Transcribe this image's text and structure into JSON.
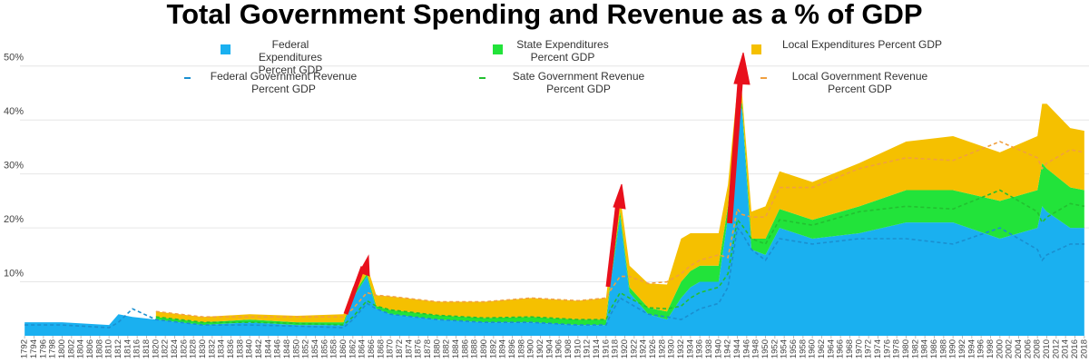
{
  "chart_data": {
    "type": "stacked_area",
    "title": "Total Government Spending and Revenue as a % of GDP",
    "x": [
      1792,
      1800,
      1810,
      1812,
      1815,
      1820,
      1830,
      1840,
      1850,
      1860,
      1862,
      1865,
      1867,
      1870,
      1880,
      1890,
      1900,
      1910,
      1916,
      1917,
      1919,
      1921,
      1925,
      1929,
      1932,
      1934,
      1936,
      1940,
      1942,
      1944,
      1945,
      1947,
      1950,
      1953,
      1960,
      1970,
      1980,
      1990,
      2000,
      2008,
      2009,
      2010,
      2015,
      2018
    ],
    "series": [
      {
        "name": "Federal Expenditures Percent GDP",
        "kind": "area",
        "color": "#1ab0f0",
        "values": [
          2.5,
          2.5,
          2,
          4,
          3.5,
          3,
          2,
          2.5,
          2,
          2,
          7,
          11,
          5,
          4,
          3,
          2.5,
          2.5,
          2,
          2,
          10,
          22,
          8,
          4,
          3,
          7,
          9,
          10,
          10,
          22,
          43,
          42,
          16,
          15,
          20,
          18,
          19,
          21,
          21,
          18,
          20,
          24,
          23,
          20,
          20
        ]
      },
      {
        "name": "State Expenditures Percent GDP",
        "kind": "area",
        "color": "#22e33a",
        "values": [
          null,
          null,
          null,
          null,
          null,
          0.5,
          0.5,
          0.5,
          0.5,
          0.5,
          0.5,
          0.5,
          0.5,
          0.8,
          0.8,
          0.8,
          1,
          1,
          1,
          1,
          1,
          1,
          1.2,
          1.5,
          3,
          3,
          3,
          3,
          2,
          1,
          1,
          2,
          3,
          3.5,
          3.5,
          5,
          6,
          6,
          7,
          7,
          8,
          8,
          7.5,
          7
        ]
      },
      {
        "name": "Local Expenditures Percent GDP",
        "kind": "area",
        "color": "#f5c000",
        "values": [
          null,
          null,
          null,
          null,
          null,
          1,
          1,
          1,
          1.2,
          1.5,
          1.5,
          1.5,
          2,
          2.5,
          2.5,
          3,
          3.5,
          3.5,
          4,
          3.5,
          3,
          4,
          4.5,
          5,
          8,
          7,
          6,
          6,
          4,
          2,
          2,
          5,
          6,
          7,
          7,
          8,
          9,
          10,
          9,
          10,
          11,
          12,
          11,
          11
        ]
      },
      {
        "name": "Federal Government Revenue Percent GDP",
        "kind": "line",
        "color": "#1a8fd0",
        "values": [
          2,
          2,
          1.5,
          2.5,
          5,
          3,
          2,
          2,
          1.8,
          1.5,
          3,
          6,
          5,
          4,
          3,
          2.5,
          2.5,
          2,
          2,
          4,
          7,
          6,
          4,
          3.5,
          3,
          4,
          5,
          6,
          9,
          20,
          19,
          16,
          14,
          18,
          17,
          18,
          18,
          17,
          20,
          16,
          14,
          15,
          17,
          17
        ]
      },
      {
        "name": "Sate Government Revenue Percent GDP",
        "kind": "line",
        "color": "#22c030",
        "values": [
          null,
          null,
          null,
          null,
          null,
          0.5,
          0.5,
          0.5,
          0.5,
          0.5,
          0.5,
          0.5,
          0.5,
          0.8,
          0.8,
          0.8,
          1,
          1,
          1,
          1,
          1,
          1,
          1.2,
          1.5,
          2.5,
          3,
          3,
          3,
          2.5,
          1.5,
          1.5,
          2,
          3,
          3.5,
          3.5,
          5,
          6,
          6.5,
          7,
          7,
          7,
          7,
          7.5,
          7
        ]
      },
      {
        "name": "Local Government Revenue Percent GDP",
        "kind": "line",
        "color": "#f0a040",
        "values": [
          null,
          null,
          null,
          null,
          null,
          1,
          1,
          1,
          1.2,
          1.5,
          1.5,
          1.5,
          2,
          2.5,
          2.5,
          3,
          3.5,
          3.5,
          4,
          3.5,
          3,
          4,
          4.5,
          5,
          6,
          6,
          6,
          6,
          3,
          2,
          2,
          4,
          5,
          6,
          7,
          8,
          9,
          9,
          9,
          10,
          10,
          10,
          10,
          10
        ]
      }
    ],
    "xlim": [
      1791,
      2019
    ],
    "xticks": [
      1792,
      1794,
      1796,
      1798,
      1800,
      1802,
      1804,
      1806,
      1808,
      1810,
      1812,
      1814,
      1816,
      1818,
      1820,
      1822,
      1824,
      1826,
      1828,
      1830,
      1832,
      1834,
      1836,
      1838,
      1840,
      1842,
      1844,
      1846,
      1848,
      1850,
      1852,
      1854,
      1856,
      1858,
      1860,
      1862,
      1864,
      1866,
      1868,
      1870,
      1872,
      1874,
      1876,
      1878,
      1880,
      1882,
      1884,
      1886,
      1888,
      1890,
      1892,
      1894,
      1896,
      1898,
      1900,
      1902,
      1904,
      1906,
      1908,
      1910,
      1912,
      1914,
      1916,
      1918,
      1920,
      1922,
      1924,
      1926,
      1928,
      1930,
      1932,
      1934,
      1936,
      1938,
      1940,
      1942,
      1944,
      1946,
      1948,
      1950,
      1952,
      1954,
      1956,
      1958,
      1960,
      1962,
      1964,
      1966,
      1968,
      1970,
      1972,
      1974,
      1976,
      1978,
      1980,
      1982,
      1984,
      1986,
      1988,
      1990,
      1992,
      1994,
      1996,
      1998,
      2000,
      2002,
      2004,
      2006,
      2008,
      2010,
      2012,
      2014,
      2016,
      2018
    ],
    "ylim": [
      0,
      54
    ],
    "yticks": [
      {
        "value": 10,
        "label": "10%"
      },
      {
        "value": 20,
        "label": "20%"
      },
      {
        "value": 30,
        "label": "30%"
      },
      {
        "value": 40,
        "label": "40%"
      },
      {
        "value": 50,
        "label": "50%"
      }
    ],
    "grid": true,
    "legend": "top"
  }
}
